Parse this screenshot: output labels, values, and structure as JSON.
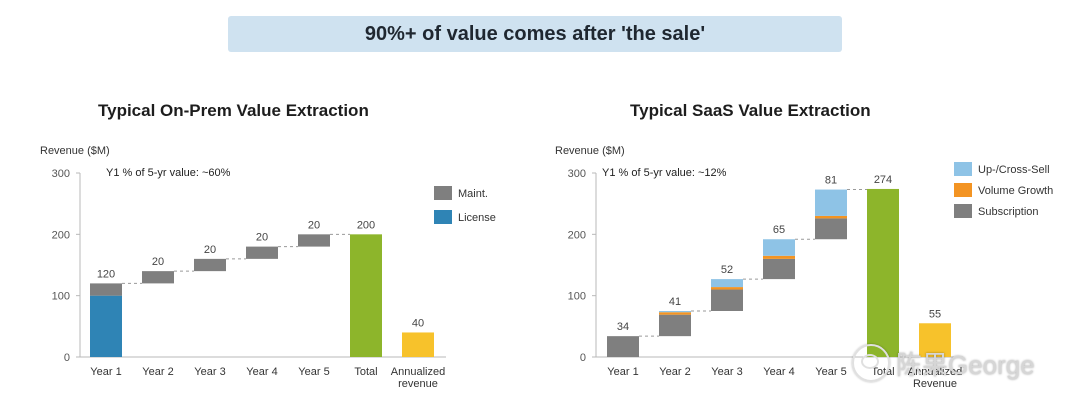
{
  "banner": {
    "text": "90%+ of value comes after 'the sale'"
  },
  "watermark": {
    "text": "陈果George",
    "icon": "wechat-logo-icon"
  },
  "chart_data": [
    {
      "type": "bar",
      "subtype": "waterfall",
      "title": "Typical On-Prem Value Extraction",
      "ylabel": "Revenue ($M)",
      "annotation": "Y1 % of 5-yr value: ~60%",
      "ylim": [
        0,
        300
      ],
      "yticks": [
        0,
        100,
        200,
        300
      ],
      "categories": [
        "Year 1",
        "Year 2",
        "Year 3",
        "Year 4",
        "Year 5",
        "Total",
        "Annualized revenue"
      ],
      "legend": [
        {
          "name": "Maint.",
          "color": "#7f7f7f"
        },
        {
          "name": "License",
          "color": "#2f84b5"
        }
      ],
      "bars": [
        {
          "category": "Year 1",
          "label": "120",
          "base": 0,
          "segments": [
            {
              "series": "License",
              "value": 100,
              "color": "#2f84b5"
            },
            {
              "series": "Maint.",
              "value": 20,
              "color": "#7f7f7f"
            }
          ]
        },
        {
          "category": "Year 2",
          "label": "20",
          "base": 120,
          "segments": [
            {
              "series": "Maint.",
              "value": 20,
              "color": "#7f7f7f"
            }
          ]
        },
        {
          "category": "Year 3",
          "label": "20",
          "base": 140,
          "segments": [
            {
              "series": "Maint.",
              "value": 20,
              "color": "#7f7f7f"
            }
          ]
        },
        {
          "category": "Year 4",
          "label": "20",
          "base": 160,
          "segments": [
            {
              "series": "Maint.",
              "value": 20,
              "color": "#7f7f7f"
            }
          ]
        },
        {
          "category": "Year 5",
          "label": "20",
          "base": 180,
          "segments": [
            {
              "series": "Maint.",
              "value": 20,
              "color": "#7f7f7f"
            }
          ]
        },
        {
          "category": "Total",
          "label": "200",
          "base": 0,
          "segments": [
            {
              "series": "Total",
              "value": 200,
              "color": "#8db52b"
            }
          ]
        },
        {
          "category": "Annualized revenue",
          "label": "40",
          "base": 0,
          "segments": [
            {
              "series": "Annualized revenue",
              "value": 40,
              "color": "#f7c22b"
            }
          ]
        }
      ]
    },
    {
      "type": "bar",
      "subtype": "waterfall",
      "title": "Typical SaaS Value Extraction",
      "ylabel": "Revenue ($M)",
      "annotation": "Y1 % of 5-yr value: ~12%",
      "ylim": [
        0,
        300
      ],
      "yticks": [
        0,
        100,
        200,
        300
      ],
      "categories": [
        "Year 1",
        "Year 2",
        "Year 3",
        "Year 4",
        "Year 5",
        "Total",
        "Annualized Revenue"
      ],
      "legend": [
        {
          "name": "Up-/Cross-Sell",
          "color": "#8ec3e6"
        },
        {
          "name": "Volume Growth",
          "color": "#f39423"
        },
        {
          "name": "Subscription",
          "color": "#7f7f7f"
        }
      ],
      "bars": [
        {
          "category": "Year 1",
          "label": "34",
          "base": 0,
          "segments": [
            {
              "series": "Subscription",
              "value": 34,
              "color": "#7f7f7f"
            }
          ]
        },
        {
          "category": "Year 2",
          "label": "41",
          "base": 34,
          "segments": [
            {
              "series": "Subscription",
              "value": 35,
              "color": "#7f7f7f"
            },
            {
              "series": "Volume Growth",
              "value": 4,
              "color": "#f39423"
            },
            {
              "series": "Up-/Cross-Sell",
              "value": 2,
              "color": "#8ec3e6"
            }
          ]
        },
        {
          "category": "Year 3",
          "label": "52",
          "base": 75,
          "segments": [
            {
              "series": "Subscription",
              "value": 35,
              "color": "#7f7f7f"
            },
            {
              "series": "Volume Growth",
              "value": 4,
              "color": "#f39423"
            },
            {
              "series": "Up-/Cross-Sell",
              "value": 13,
              "color": "#8ec3e6"
            }
          ]
        },
        {
          "category": "Year 4",
          "label": "65",
          "base": 127,
          "segments": [
            {
              "series": "Subscription",
              "value": 33,
              "color": "#7f7f7f"
            },
            {
              "series": "Volume Growth",
              "value": 5,
              "color": "#f39423"
            },
            {
              "series": "Up-/Cross-Sell",
              "value": 27,
              "color": "#8ec3e6"
            }
          ]
        },
        {
          "category": "Year 5",
          "label": "81",
          "base": 192,
          "segments": [
            {
              "series": "Subscription",
              "value": 34,
              "color": "#7f7f7f"
            },
            {
              "series": "Volume Growth",
              "value": 4,
              "color": "#f39423"
            },
            {
              "series": "Up-/Cross-Sell",
              "value": 43,
              "color": "#8ec3e6"
            }
          ]
        },
        {
          "category": "Total",
          "label": "274",
          "base": 0,
          "segments": [
            {
              "series": "Total",
              "value": 274,
              "color": "#8db52b"
            }
          ]
        },
        {
          "category": "Annualized Revenue",
          "label": "55",
          "base": 0,
          "segments": [
            {
              "series": "Annualized Revenue",
              "value": 55,
              "color": "#f7c22b"
            }
          ]
        }
      ]
    }
  ]
}
